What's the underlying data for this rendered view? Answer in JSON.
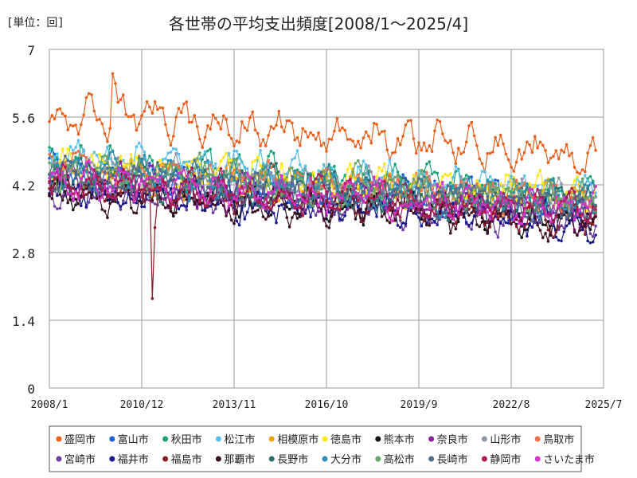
{
  "unit_label": "[単位：回]",
  "chart_data": {
    "type": "line",
    "title": "各世帯の平均支出頻度[2008/1～2025/4]",
    "xlabel": "",
    "ylabel": "",
    "ylim": [
      0,
      7
    ],
    "y_ticks": [
      "0",
      "1.4",
      "2.8",
      "4.2",
      "5.6",
      "7"
    ],
    "y_tick_values": [
      0,
      1.4,
      2.8,
      4.2,
      5.6,
      7
    ],
    "x_ticks": [
      "2008/1",
      "2010/12",
      "2013/11",
      "2016/10",
      "2019/9",
      "2022/8",
      "2025/7"
    ],
    "x_start": "2008/1",
    "x_end": "2025/4",
    "grid": true,
    "legend_position": "bottom",
    "annotated_points": [
      {
        "series": "盛岡市",
        "date": "2010/1",
        "value": 6.5
      },
      {
        "series": "福島市",
        "date": "2011/4",
        "value": 1.85
      }
    ],
    "series": [
      {
        "name": "盛岡市",
        "color": "#e8601c",
        "base": 5.7,
        "end": 4.8,
        "amp": 0.45
      },
      {
        "name": "富山市",
        "color": "#1f5fd6",
        "base": 4.4,
        "end": 3.8,
        "amp": 0.45
      },
      {
        "name": "秋田市",
        "color": "#1aa37a",
        "base": 4.7,
        "end": 4.0,
        "amp": 0.4
      },
      {
        "name": "松江市",
        "color": "#5bc0eb",
        "base": 4.8,
        "end": 4.0,
        "amp": 0.4
      },
      {
        "name": "相模原市",
        "color": "#f0a30a",
        "base": 4.5,
        "end": 3.8,
        "amp": 0.4
      },
      {
        "name": "徳島市",
        "color": "#ffe51a",
        "base": 4.6,
        "end": 3.9,
        "amp": 0.45
      },
      {
        "name": "熊本市",
        "color": "#111111",
        "base": 4.1,
        "end": 3.5,
        "amp": 0.4
      },
      {
        "name": "奈良市",
        "color": "#8e1f9a",
        "base": 4.3,
        "end": 3.6,
        "amp": 0.4
      },
      {
        "name": "山形市",
        "color": "#8d99a6",
        "base": 4.5,
        "end": 3.9,
        "amp": 0.4
      },
      {
        "name": "鳥取市",
        "color": "#e8734a",
        "base": 4.6,
        "end": 3.9,
        "amp": 0.4
      },
      {
        "name": "宮崎市",
        "color": "#6a3d9a",
        "base": 4.2,
        "end": 3.5,
        "amp": 0.4
      },
      {
        "name": "福井市",
        "color": "#1a1a8c",
        "base": 4.1,
        "end": 3.4,
        "amp": 0.45
      },
      {
        "name": "福島市",
        "color": "#8b1a2b",
        "base": 4.2,
        "end": 3.5,
        "amp": 0.4
      },
      {
        "name": "那覇市",
        "color": "#3b0d22",
        "base": 4.0,
        "end": 3.4,
        "amp": 0.4
      },
      {
        "name": "長野市",
        "color": "#2b6f6f",
        "base": 4.4,
        "end": 3.8,
        "amp": 0.4
      },
      {
        "name": "大分市",
        "color": "#2a8fb0",
        "base": 4.5,
        "end": 3.8,
        "amp": 0.4
      },
      {
        "name": "高松市",
        "color": "#6aa56a",
        "base": 4.5,
        "end": 3.9,
        "amp": 0.4
      },
      {
        "name": "長崎市",
        "color": "#4d6f8c",
        "base": 4.4,
        "end": 3.7,
        "amp": 0.4
      },
      {
        "name": "静岡市",
        "color": "#b0185a",
        "base": 4.3,
        "end": 3.6,
        "amp": 0.4
      },
      {
        "name": "さいたま市",
        "color": "#d434c8",
        "base": 4.3,
        "end": 3.7,
        "amp": 0.4
      }
    ]
  }
}
